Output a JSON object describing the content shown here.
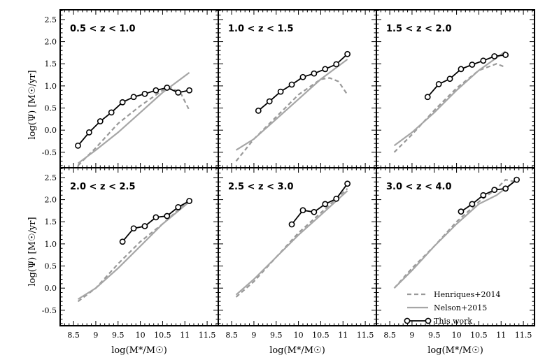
{
  "figure": {
    "xlabel": "log(M*/M☉)",
    "ylabel": "log(Ψ) [M☉/yr]",
    "xlim": [
      8.2,
      11.75
    ],
    "ylim": [
      -0.85,
      2.72
    ],
    "x_ticks": [
      8.5,
      9,
      9.5,
      10,
      10.5,
      11,
      11.5
    ],
    "x_tick_labels": [
      "8.5",
      "9",
      "9.5",
      "10",
      "10.5",
      "11",
      "11.5"
    ],
    "y_ticks": [
      -0.5,
      0.0,
      0.5,
      1.0,
      1.5,
      2.0,
      2.5
    ],
    "y_tick_labels": [
      "-0.5",
      "0.0",
      "0.5",
      "1.0",
      "1.5",
      "2.0",
      "2.5"
    ],
    "colors": {
      "this_work": "#000000",
      "henriques": "#999999",
      "nelson": "#a6a6a6"
    },
    "legend": {
      "placement": "lower-right of bottom-right panel",
      "items": [
        "Henriques+2014",
        "Nelson+2015",
        "This work"
      ]
    }
  },
  "chart_data": [
    {
      "type": "line",
      "panel_label": "0.5 < z < 1.0",
      "series": [
        {
          "name": "Henriques+2014",
          "style": "dashed",
          "x": [
            8.6,
            9.0,
            9.5,
            10.0,
            10.5,
            10.7,
            10.9,
            11.1
          ],
          "y": [
            -0.8,
            -0.4,
            0.15,
            0.55,
            0.9,
            0.95,
            0.85,
            0.45
          ]
        },
        {
          "name": "Nelson+2015",
          "style": "solid",
          "x": [
            8.6,
            9.0,
            9.5,
            10.0,
            10.5,
            11.1
          ],
          "y": [
            -0.75,
            -0.45,
            -0.05,
            0.4,
            0.85,
            1.3
          ]
        },
        {
          "name": "This work",
          "style": "line-circle",
          "x": [
            8.6,
            8.85,
            9.1,
            9.35,
            9.6,
            9.85,
            10.1,
            10.35,
            10.6,
            10.85,
            11.1
          ],
          "y": [
            -0.35,
            -0.05,
            0.2,
            0.4,
            0.63,
            0.75,
            0.82,
            0.9,
            0.96,
            0.85,
            0.9
          ]
        }
      ]
    },
    {
      "type": "line",
      "panel_label": "1.0 < z < 1.5",
      "series": [
        {
          "name": "Henriques+2014",
          "style": "dashed",
          "x": [
            8.6,
            9.0,
            9.5,
            10.0,
            10.5,
            10.7,
            10.9,
            11.1
          ],
          "y": [
            -0.7,
            -0.2,
            0.3,
            0.8,
            1.15,
            1.18,
            1.1,
            0.8
          ]
        },
        {
          "name": "Nelson+2015",
          "style": "solid",
          "x": [
            8.6,
            9.0,
            9.5,
            10.0,
            10.5,
            11.1
          ],
          "y": [
            -0.45,
            -0.2,
            0.25,
            0.7,
            1.15,
            1.6
          ]
        },
        {
          "name": "This work",
          "style": "line-circle",
          "x": [
            9.1,
            9.35,
            9.6,
            9.85,
            10.1,
            10.35,
            10.6,
            10.85,
            11.1
          ],
          "y": [
            0.44,
            0.65,
            0.87,
            1.03,
            1.2,
            1.28,
            1.38,
            1.49,
            1.72
          ]
        }
      ]
    },
    {
      "type": "line",
      "panel_label": "1.5 < z < 2.0",
      "series": [
        {
          "name": "Henriques+2014",
          "style": "dashed",
          "x": [
            8.6,
            9.0,
            9.5,
            10.0,
            10.5,
            10.9,
            11.1
          ],
          "y": [
            -0.5,
            -0.1,
            0.45,
            0.95,
            1.35,
            1.5,
            1.42
          ]
        },
        {
          "name": "Nelson+2015",
          "style": "solid",
          "x": [
            8.6,
            9.0,
            9.5,
            10.0,
            10.5,
            11.1
          ],
          "y": [
            -0.35,
            -0.05,
            0.4,
            0.9,
            1.35,
            1.78
          ]
        },
        {
          "name": "This work",
          "style": "line-circle",
          "x": [
            9.35,
            9.6,
            9.85,
            10.1,
            10.35,
            10.6,
            10.85,
            11.1
          ],
          "y": [
            0.75,
            1.04,
            1.16,
            1.38,
            1.48,
            1.57,
            1.67,
            1.7
          ]
        }
      ]
    },
    {
      "type": "line",
      "panel_label": "2.0 < z < 2.5",
      "series": [
        {
          "name": "Henriques+2014",
          "style": "dashed",
          "x": [
            8.6,
            9.0,
            9.5,
            10.0,
            10.5,
            11.1
          ],
          "y": [
            -0.3,
            0.0,
            0.55,
            1.05,
            1.45,
            2.0
          ]
        },
        {
          "name": "Nelson+2015",
          "style": "solid",
          "x": [
            8.6,
            9.0,
            9.5,
            10.0,
            10.5,
            11.1
          ],
          "y": [
            -0.25,
            0.0,
            0.45,
            0.95,
            1.45,
            1.95
          ]
        },
        {
          "name": "This work",
          "style": "line-circle",
          "x": [
            9.6,
            9.85,
            10.1,
            10.35,
            10.6,
            10.85,
            11.1
          ],
          "y": [
            1.05,
            1.35,
            1.4,
            1.6,
            1.63,
            1.83,
            1.97
          ]
        }
      ]
    },
    {
      "type": "line",
      "panel_label": "2.5 < z < 3.0",
      "series": [
        {
          "name": "Henriques+2014",
          "style": "dashed",
          "x": [
            8.6,
            9.0,
            9.5,
            10.0,
            10.5,
            11.1
          ],
          "y": [
            -0.2,
            0.15,
            0.7,
            1.25,
            1.7,
            2.25
          ]
        },
        {
          "name": "Nelson+2015",
          "style": "solid",
          "x": [
            8.6,
            9.0,
            9.5,
            10.0,
            10.5,
            11.1
          ],
          "y": [
            -0.15,
            0.2,
            0.7,
            1.2,
            1.65,
            2.2
          ]
        },
        {
          "name": "This work",
          "style": "line-circle",
          "x": [
            9.85,
            10.1,
            10.35,
            10.6,
            10.85,
            11.1
          ],
          "y": [
            1.44,
            1.76,
            1.72,
            1.9,
            2.02,
            2.36
          ]
        }
      ]
    },
    {
      "type": "line",
      "panel_label": "3.0 < z < 4.0",
      "series": [
        {
          "name": "Henriques+2014",
          "style": "dashed",
          "x": [
            8.6,
            9.0,
            9.5,
            10.0,
            10.5,
            10.9,
            11.1,
            11.35
          ],
          "y": [
            0.0,
            0.45,
            0.95,
            1.5,
            1.95,
            2.25,
            2.45,
            2.4
          ]
        },
        {
          "name": "Nelson+2015",
          "style": "solid",
          "x": [
            8.6,
            9.0,
            9.5,
            10.0,
            10.5,
            10.9,
            11.35
          ],
          "y": [
            0.0,
            0.4,
            0.95,
            1.45,
            1.9,
            2.1,
            2.45
          ]
        },
        {
          "name": "This work",
          "style": "line-circle",
          "x": [
            10.1,
            10.35,
            10.6,
            10.85,
            11.1,
            11.35
          ],
          "y": [
            1.73,
            1.9,
            2.1,
            2.22,
            2.25,
            2.45
          ]
        }
      ]
    }
  ]
}
